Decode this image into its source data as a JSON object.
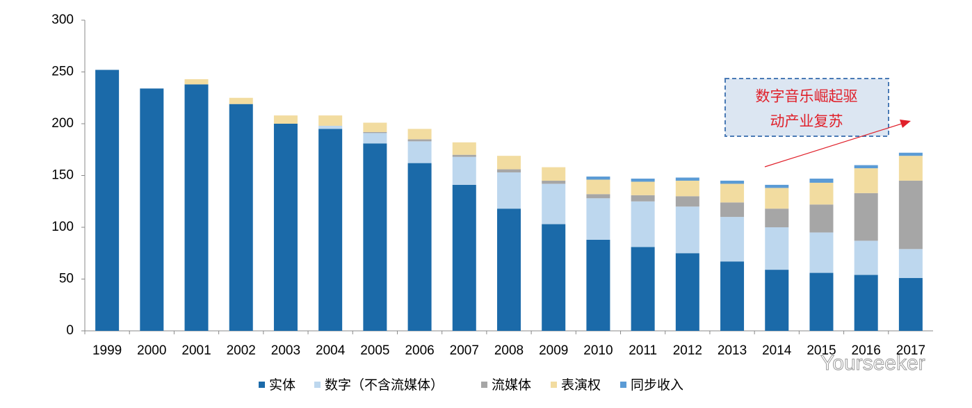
{
  "chart_data": {
    "type": "stacked_bar",
    "categories": [
      "1999",
      "2000",
      "2001",
      "2002",
      "2003",
      "2004",
      "2005",
      "2006",
      "2007",
      "2008",
      "2009",
      "2010",
      "2011",
      "2012",
      "2013",
      "2014",
      "2015",
      "2016",
      "2017"
    ],
    "series": [
      {
        "name": "实体",
        "color": "#1b6aa9",
        "values": [
          252,
          234,
          238,
          219,
          200,
          195,
          181,
          162,
          141,
          118,
          103,
          88,
          81,
          75,
          67,
          59,
          56,
          54,
          51
        ]
      },
      {
        "name": "数字（不含流媒体）",
        "color": "#bdd7ee",
        "values": [
          0,
          0,
          0,
          0,
          0,
          3,
          10,
          21,
          27,
          35,
          39,
          40,
          44,
          45,
          43,
          41,
          39,
          33,
          28
        ]
      },
      {
        "name": "流媒体",
        "color": "#a6a6a6",
        "values": [
          0,
          0,
          0,
          0,
          0,
          0,
          1,
          2,
          2,
          3,
          3,
          4,
          6,
          10,
          14,
          18,
          27,
          46,
          66
        ]
      },
      {
        "name": "表演权",
        "color": "#f2dca0",
        "values": [
          0,
          0,
          5,
          6,
          8,
          10,
          9,
          10,
          12,
          13,
          13,
          14,
          13,
          15,
          18,
          20,
          21,
          24,
          24
        ]
      },
      {
        "name": "同步收入",
        "color": "#5b9bd5",
        "values": [
          0,
          0,
          0,
          0,
          0,
          0,
          0,
          0,
          0,
          0,
          0,
          3,
          3,
          3,
          3,
          3,
          4,
          3,
          3
        ]
      }
    ],
    "ylim": [
      0,
      300
    ],
    "yticks": [
      0,
      50,
      100,
      150,
      200,
      250,
      300
    ],
    "annotation": [
      "数字音乐崛起驱",
      "动产业复苏"
    ],
    "watermark": "Yourseeker"
  }
}
